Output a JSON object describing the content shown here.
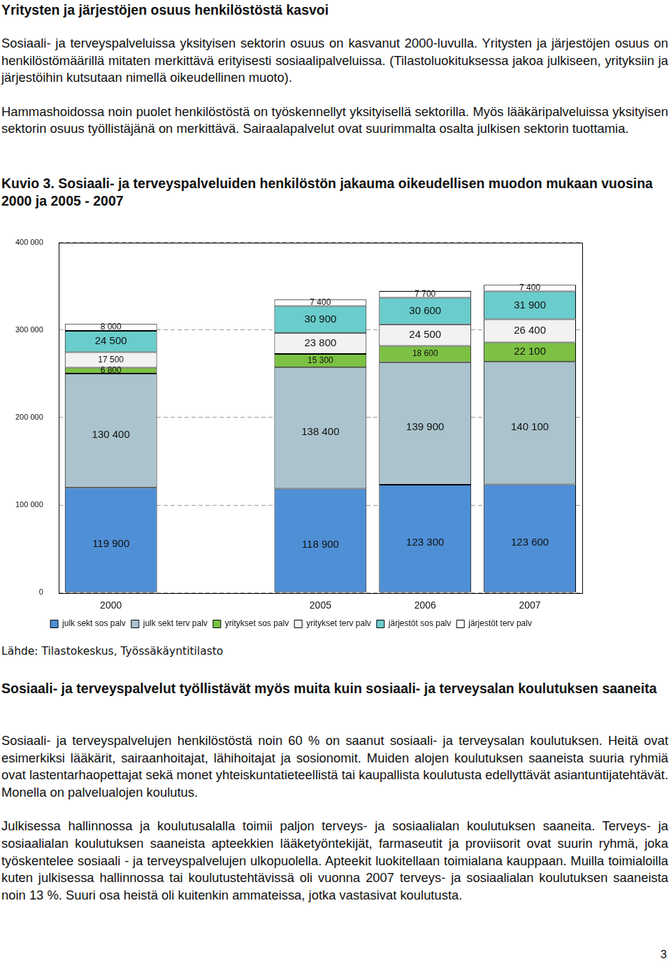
{
  "document": {
    "heading": "Yritysten ja järjestöjen osuus henkilöstöstä kasvoi",
    "paragraphs_1": [
      "Sosiaali- ja terveyspalveluissa yksityisen sektorin osuus on kasvanut 2000-luvulla. Yritysten ja järjestöjen osuus on henkilöstömäärillä mitaten merkittävä erityisesti sosiaalipalveluissa. (Tilastoluokituksessa jakoa julkiseen, yrityksiin ja järjestöihin kutsutaan nimellä oikeudellinen muoto).",
      "Hammashoidossa noin puolet henkilöstöstä on työskennellyt yksityisellä sektorilla. Myös lääkäripalveluissa yksityisen sektorin osuus työllistäjänä on merkittävä. Sairaalapalvelut ovat suurimmalta osalta julkisen sektorin tuottamia."
    ],
    "source": "Lähde: Tilastokeskus, Työssäkäyntitilasto",
    "heading_2": "Sosiaali- ja terveyspalvelut työllistävät myös muita kuin sosiaali- ja terveysalan koulutuksen saaneita",
    "paragraphs_2": [
      "Sosiaali- ja terveyspalvelujen henkilöstöstä noin 60 % on saanut sosiaali- ja terveysalan koulutuksen. Heitä ovat esimerkiksi lääkärit, sairaanhoitajat, lähihoitajat ja sosionomit. Muiden alojen koulutuksen saaneista suuria ryhmiä ovat lastentarhaopettajat sekä monet yhteiskuntatieteellistä tai kaupallista koulutusta edellyttävät asiantuntijatehtävät. Monella on palvelualojen koulutus.",
      "Julkisessa hallinnossa ja koulutusalalla toimii paljon terveys- ja sosiaalialan koulutuksen saaneita. Terveys- ja sosiaalialan koulutuksen saaneista apteekkien lääketyöntekijät, farmaseutit ja proviisorit ovat suurin ryhmä, joka työskentelee sosiaali - ja terveyspalvelujen ulkopuolella. Apteekit luokitellaan toimialana kauppaan. Muilla toimialoilla kuten julkisessa hallinnossa tai koulutustehtävissä oli vuonna 2007 terveys- ja sosiaalialan koulutuksen saaneista noin 13 %. Suuri osa heistä oli kuitenkin ammateissa, jotka vastasivat koulutusta."
    ],
    "page_number": "3"
  },
  "chart_data": {
    "type": "bar",
    "title": "Kuvio 3. Sosiaali- ja terveyspalveluiden henkilöstön jakauma oikeudellisen muodon mukaan vuosina 2000 ja 2005 - 2007",
    "categories": [
      "2000",
      null,
      "2005",
      "2006",
      "2007"
    ],
    "stacked": true,
    "data_labels": true,
    "grid": true,
    "legend": "bottom",
    "ylim": [
      0,
      400000
    ],
    "yticks": [
      0,
      {
        "value": 100000,
        "label": "100 000"
      },
      {
        "value": 200000,
        "label": "200 000"
      },
      {
        "value": 300000,
        "label": "300 000"
      },
      {
        "value": 400000,
        "label": "400 000"
      }
    ],
    "series": [
      {
        "name": "julk sekt sos palv",
        "color": "#4f8fd6",
        "values": [
          119900,
          null,
          118900,
          123300,
          123600
        ],
        "value_labels": [
          "119 900",
          null,
          "118 900",
          "123 300",
          "123 600"
        ]
      },
      {
        "name": "julk sekt terv palv",
        "color": "#aac3cc",
        "values": [
          130400,
          null,
          138400,
          139900,
          140100
        ],
        "value_labels": [
          "130 400",
          null,
          "138 400",
          "139 900",
          "140 100"
        ]
      },
      {
        "name": "yritykset sos palv",
        "color": "#7cc143",
        "values": [
          6800,
          null,
          15300,
          18600,
          22100
        ],
        "value_labels": [
          "6 800",
          null,
          "15 300",
          "18 600",
          "22 100"
        ]
      },
      {
        "name": "yritykset terv palv",
        "color": "#f2f2f2",
        "values": [
          17500,
          null,
          23800,
          24500,
          26400
        ],
        "value_labels": [
          "17 500",
          null,
          "23 800",
          "24 500",
          "26 400"
        ]
      },
      {
        "name": "järjestöt sos palv",
        "color": "#6acccc",
        "values": [
          24500,
          null,
          30900,
          30600,
          31900
        ],
        "value_labels": [
          "24 500",
          null,
          "30 900",
          "30 600",
          "31 900"
        ]
      },
      {
        "name": "järjestöt terv palv",
        "color": "#ffffff",
        "values": [
          8000,
          null,
          7400,
          7700,
          7400
        ],
        "value_labels": [
          "8 000",
          null,
          "7 400",
          "7 700",
          "7 400"
        ]
      }
    ]
  }
}
